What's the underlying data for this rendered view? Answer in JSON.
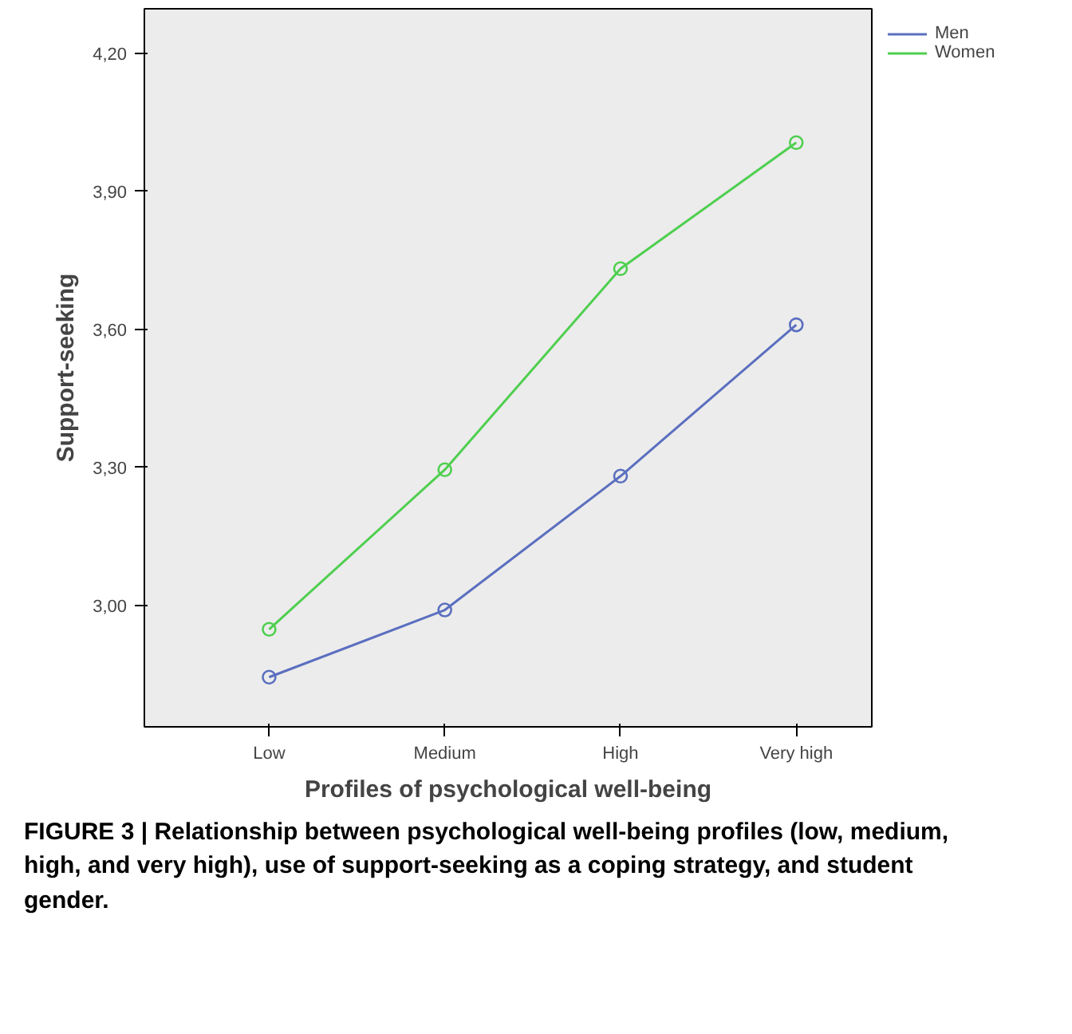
{
  "chart_data": {
    "type": "line",
    "xlabel": "Profiles of psychological well-being",
    "ylabel": "Support-seeking",
    "categories": [
      "Low",
      "Medium",
      "High",
      "Very high"
    ],
    "series": [
      {
        "name": "Men",
        "color": "#5b6fbf",
        "values": [
          2.844,
          2.99,
          3.281,
          3.61
        ]
      },
      {
        "name": "Women",
        "color": "#4fcf4f",
        "values": [
          2.948,
          3.295,
          3.732,
          4.006
        ]
      }
    ],
    "ylim": [
      2.736,
      4.297
    ],
    "yticks": [
      {
        "value": 3.0,
        "label": "3,00"
      },
      {
        "value": 3.3,
        "label": "3,30"
      },
      {
        "value": 3.6,
        "label": "3,60"
      },
      {
        "value": 3.9,
        "label": "3,90"
      },
      {
        "value": 4.2,
        "label": "4,20"
      }
    ],
    "marker": "circle",
    "line_style": "solid",
    "legend": "top right",
    "grid": false,
    "annotations": [
      "FIGURE 3 | Relationship between psychological well-being profiles (low, medium, high, and very high), use of support-seeking as a coping strategy, and student gender."
    ]
  }
}
